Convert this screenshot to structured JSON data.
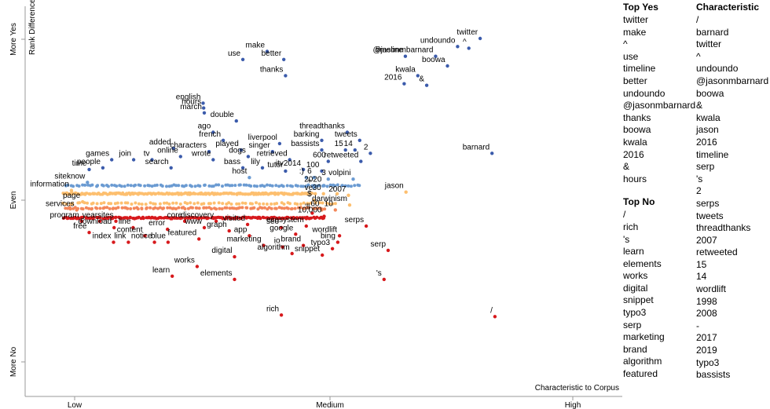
{
  "chart_data": {
    "type": "scatter",
    "x_axis": {
      "title": "Characteristic to Corpus",
      "ticks": [
        "Low",
        "Medium",
        "High"
      ]
    },
    "y_axis": {
      "title": "Rank Difference",
      "ticks": [
        "More Yes",
        "Even",
        "More No"
      ]
    },
    "colors": {
      "yes_strong": "#3b5bab",
      "yes_light": "#6b9bd2",
      "neutral": "#fdbf6f",
      "no_light": "#f3875a",
      "no_strong": "#d7191c"
    },
    "labeled_points": [
      {
        "term": "make",
        "x": 0.404,
        "y": 0.92
      },
      {
        "term": "use",
        "x": 0.363,
        "y": 0.87
      },
      {
        "term": "better",
        "x": 0.432,
        "y": 0.87
      },
      {
        "term": "thanks",
        "x": 0.435,
        "y": 0.77
      },
      {
        "term": "english",
        "x": 0.296,
        "y": 0.6
      },
      {
        "term": "hours",
        "x": 0.297,
        "y": 0.57
      },
      {
        "term": "march",
        "x": 0.298,
        "y": 0.54
      },
      {
        "term": "double",
        "x": 0.352,
        "y": 0.49
      },
      {
        "term": "ago",
        "x": 0.313,
        "y": 0.42
      },
      {
        "term": "french",
        "x": 0.33,
        "y": 0.37
      },
      {
        "term": "played",
        "x": 0.36,
        "y": 0.31
      },
      {
        "term": "liverpool",
        "x": 0.425,
        "y": 0.35
      },
      {
        "term": "singer",
        "x": 0.413,
        "y": 0.3
      },
      {
        "term": "added",
        "x": 0.246,
        "y": 0.32
      },
      {
        "term": "characters",
        "x": 0.306,
        "y": 0.3
      },
      {
        "term": "dogs",
        "x": 0.372,
        "y": 0.27
      },
      {
        "term": "retrieved",
        "x": 0.442,
        "y": 0.25
      },
      {
        "term": "online",
        "x": 0.258,
        "y": 0.27
      },
      {
        "term": "wrote",
        "x": 0.313,
        "y": 0.25
      },
      {
        "term": "bass",
        "x": 0.363,
        "y": 0.2
      },
      {
        "term": "lily",
        "x": 0.396,
        "y": 0.2
      },
      {
        "term": "tutor",
        "x": 0.435,
        "y": 0.18
      },
      {
        "term": "games",
        "x": 0.142,
        "y": 0.25
      },
      {
        "term": "join",
        "x": 0.179,
        "y": 0.25
      },
      {
        "term": "tv",
        "x": 0.21,
        "y": 0.25
      },
      {
        "term": "people",
        "x": 0.127,
        "y": 0.2
      },
      {
        "term": "search",
        "x": 0.242,
        "y": 0.2
      },
      {
        "term": "host",
        "x": 0.374,
        "y": 0.14
      },
      {
        "term": "time",
        "x": 0.104,
        "y": 0.19
      },
      {
        "term": "siteknow",
        "x": 0.101,
        "y": 0.11
      },
      {
        "term": "information",
        "x": 0.074,
        "y": 0.06
      },
      {
        "term": "itv2014",
        "x": 0.465,
        "y": 0.19
      },
      {
        "term": "threadthanks",
        "x": 0.539,
        "y": 0.42
      },
      {
        "term": "barking",
        "x": 0.496,
        "y": 0.37
      },
      {
        "term": "tweets",
        "x": 0.56,
        "y": 0.37
      },
      {
        "term": "bassists",
        "x": 0.496,
        "y": 0.31
      },
      {
        "term": "15",
        "x": 0.536,
        "y": 0.31
      },
      {
        "term": "14",
        "x": 0.552,
        "y": 0.31
      },
      {
        "term": "2",
        "x": 0.578,
        "y": 0.29
      },
      {
        "term": "600",
        "x": 0.507,
        "y": 0.24
      },
      {
        "term": "retweeted",
        "x": 0.562,
        "y": 0.24
      },
      {
        "term": "100",
        "x": 0.496,
        "y": 0.18
      },
      {
        "term": ":)",
        "x": 0.47,
        "y": 0.14
      },
      {
        "term": "6",
        "x": 0.483,
        "y": 0.14
      },
      {
        "term": "3",
        "x": 0.507,
        "y": 0.13
      },
      {
        "term": "volpini",
        "x": 0.549,
        "y": 0.13
      },
      {
        "term": "2020",
        "x": 0.5,
        "y": 0.09
      },
      {
        "term": "+",
        "x": 0.483,
        "y": 0.08
      },
      {
        "term": "30",
        "x": 0.499,
        "y": 0.04
      },
      {
        "term": "ve",
        "x": 0.485,
        "y": 0.04
      },
      {
        "term": "-",
        "x": 0.522,
        "y": 0.04
      },
      {
        "term": "2007",
        "x": 0.541,
        "y": 0.03
      },
      {
        "term": "$",
        "x": 0.483,
        "y": 0.0
      },
      {
        "term": "darwinism",
        "x": 0.543,
        "y": -0.03
      },
      {
        "term": "60",
        "x": 0.496,
        "y": -0.06
      },
      {
        "term": "10",
        "x": 0.519,
        "y": -0.06
      },
      {
        "term": "'ll",
        "x": 0.48,
        "y": -0.08
      },
      {
        "term": "10,000",
        "x": 0.5,
        "y": -0.1
      },
      {
        "term": "jason",
        "x": 0.638,
        "y": 0.05
      },
      {
        "term": "barnard",
        "x": 0.783,
        "y": 0.29
      },
      {
        "term": "twitter",
        "x": 0.763,
        "y": 1.0
      },
      {
        "term": "undoundo",
        "x": 0.725,
        "y": 0.95
      },
      {
        "term": "^",
        "x": 0.744,
        "y": 0.94
      },
      {
        "term": "timeline",
        "x": 0.637,
        "y": 0.89
      },
      {
        "term": "@jasonmbarnard",
        "x": 0.688,
        "y": 0.89
      },
      {
        "term": "boowa",
        "x": 0.708,
        "y": 0.83
      },
      {
        "term": "kwala",
        "x": 0.658,
        "y": 0.77
      },
      {
        "term": "2016",
        "x": 0.635,
        "y": 0.72
      },
      {
        "term": "&",
        "x": 0.673,
        "y": 0.71
      },
      {
        "term": "page",
        "x": 0.093,
        "y": -0.01
      },
      {
        "term": "services",
        "x": 0.083,
        "y": -0.06
      },
      {
        "term": "program",
        "x": 0.091,
        "y": -0.13
      },
      {
        "term": "year",
        "x": 0.122,
        "y": -0.13
      },
      {
        "term": "sites",
        "x": 0.149,
        "y": -0.13
      },
      {
        "term": "download",
        "x": 0.146,
        "y": -0.17
      },
      {
        "term": "line",
        "x": 0.178,
        "y": -0.17
      },
      {
        "term": "free",
        "x": 0.104,
        "y": -0.2
      },
      {
        "term": "index",
        "x": 0.145,
        "y": -0.26
      },
      {
        "term": "link",
        "x": 0.17,
        "y": -0.26
      },
      {
        "term": "content",
        "x": 0.198,
        "y": -0.22
      },
      {
        "term": "notice",
        "x": 0.214,
        "y": -0.26
      },
      {
        "term": "error",
        "x": 0.236,
        "y": -0.18
      },
      {
        "term": "core",
        "x": 0.265,
        "y": -0.13
      },
      {
        "term": "discovery",
        "x": 0.318,
        "y": -0.13
      },
      {
        "term": "www",
        "x": 0.298,
        "y": -0.17
      },
      {
        "term": "visited",
        "x": 0.371,
        "y": -0.15
      },
      {
        "term": "blue",
        "x": 0.237,
        "y": -0.26
      },
      {
        "term": "featured",
        "x": 0.289,
        "y": -0.24
      },
      {
        "term": "graph",
        "x": 0.34,
        "y": -0.19
      },
      {
        "term": "app",
        "x": 0.374,
        "y": -0.22
      },
      {
        "term": "seo",
        "x": 0.428,
        "y": -0.17
      },
      {
        "term": "ecosystem",
        "x": 0.47,
        "y": -0.16
      },
      {
        "term": "google",
        "x": 0.452,
        "y": -0.21
      },
      {
        "term": "wordlift",
        "x": 0.526,
        "y": -0.22
      },
      {
        "term": "serps",
        "x": 0.571,
        "y": -0.16
      },
      {
        "term": "bing",
        "x": 0.523,
        "y": -0.26
      },
      {
        "term": "marketing",
        "x": 0.398,
        "y": -0.28
      },
      {
        "term": "io",
        "x": 0.43,
        "y": -0.29
      },
      {
        "term": "brand",
        "x": 0.465,
        "y": -0.28
      },
      {
        "term": "typo3",
        "x": 0.514,
        "y": -0.3
      },
      {
        "term": "algorithm",
        "x": 0.446,
        "y": -0.33
      },
      {
        "term": "snippet",
        "x": 0.497,
        "y": -0.34
      },
      {
        "term": "digital",
        "x": 0.349,
        "y": -0.35
      },
      {
        "term": "works",
        "x": 0.286,
        "y": -0.41
      },
      {
        "term": "learn",
        "x": 0.244,
        "y": -0.47
      },
      {
        "term": "elements",
        "x": 0.349,
        "y": -0.49
      },
      {
        "term": "serp",
        "x": 0.608,
        "y": -0.31
      },
      {
        "term": "'s",
        "x": 0.601,
        "y": -0.49
      },
      {
        "term": "rich",
        "x": 0.428,
        "y": -0.71
      },
      {
        "term": "/",
        "x": 0.788,
        "y": -0.72
      }
    ],
    "dense_bands": [
      {
        "color": "yes_light",
        "y": 0.09,
        "x_from": 0.065,
        "x_to": 0.56,
        "count": 110
      },
      {
        "color": "neutral",
        "y": 0.04,
        "x_from": 0.06,
        "x_to": 0.48,
        "count": 240
      },
      {
        "color": "neutral",
        "y": -0.02,
        "x_from": 0.06,
        "x_to": 0.52,
        "count": 80
      },
      {
        "color": "no_light",
        "y": -0.05,
        "x_from": 0.062,
        "x_to": 0.5,
        "count": 110
      },
      {
        "color": "no_strong",
        "y": -0.11,
        "x_from": 0.062,
        "x_to": 0.5,
        "count": 200
      }
    ]
  },
  "legend_lists": {
    "top_yes": {
      "title": "Top Yes",
      "items": [
        "twitter",
        "make",
        "^",
        "use",
        "timeline",
        "better",
        "undoundo",
        "@jasonmbarnard",
        "thanks",
        "boowa",
        "kwala",
        "2016",
        "&",
        "hours"
      ]
    },
    "top_no": {
      "title": "Top No",
      "items": [
        "/",
        "rich",
        "'s",
        "learn",
        "elements",
        "works",
        "digital",
        "snippet",
        "typo3",
        "serp",
        "marketing",
        "brand",
        "algorithm",
        "featured"
      ]
    },
    "characteristic": {
      "title": "Characteristic",
      "items": [
        "/",
        "barnard",
        "twitter",
        "^",
        "undoundo",
        "@jasonmbarnard",
        "boowa",
        "&",
        "kwala",
        "jason",
        "2016",
        "timeline",
        "serp",
        "'s",
        "2",
        "serps",
        "tweets",
        "threadthanks",
        "2007",
        "retweeted",
        "15",
        "14",
        "wordlift",
        "1998",
        "2008",
        "-",
        "2017",
        "2019",
        "typo3",
        "bassists"
      ]
    }
  }
}
